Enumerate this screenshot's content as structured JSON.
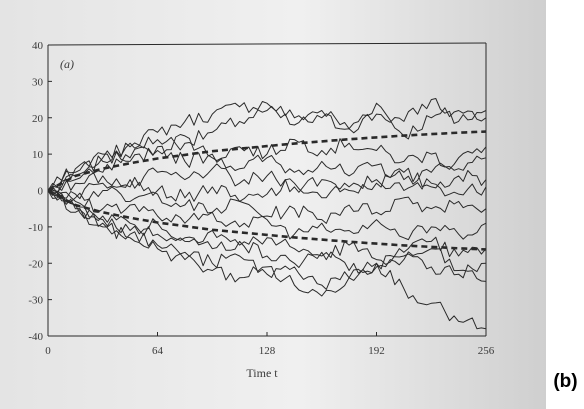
{
  "figure_label": "(b)",
  "colors": {
    "paper": "#ececec",
    "ink": "#2a2a2a"
  },
  "chart_data": {
    "type": "line",
    "panel_label": "(a)",
    "title": "",
    "xlabel": "Time t",
    "ylabel": "",
    "xlim": [
      0,
      256
    ],
    "ylim": [
      -40,
      40
    ],
    "xticks": [
      0,
      64,
      128,
      192,
      256
    ],
    "yticks": [
      -40,
      -30,
      -20,
      -10,
      0,
      10,
      20,
      30,
      40
    ],
    "grid": false,
    "legend": "none",
    "series": [
      {
        "style": "solid",
        "x": [
          0,
          16,
          32,
          48,
          64,
          80,
          96,
          112,
          128,
          144,
          160,
          176,
          192,
          208,
          224,
          240,
          256
        ],
        "values": [
          0,
          5,
          8,
          13,
          16,
          19,
          21,
          23,
          24,
          20,
          22,
          17,
          24,
          15,
          20,
          22,
          20
        ]
      },
      {
        "style": "solid",
        "x": [
          0,
          16,
          32,
          48,
          64,
          80,
          96,
          112,
          128,
          144,
          160,
          176,
          192,
          208,
          224,
          240,
          256
        ],
        "values": [
          0,
          4,
          9,
          12,
          14,
          13,
          16,
          19,
          22,
          18,
          20,
          17,
          21,
          19,
          25,
          19,
          22
        ]
      },
      {
        "style": "solid",
        "x": [
          0,
          16,
          32,
          48,
          64,
          80,
          96,
          112,
          128,
          144,
          160,
          176,
          192,
          208,
          224,
          240,
          256
        ],
        "values": [
          0,
          6,
          10,
          8,
          11,
          15,
          9,
          12,
          10,
          14,
          11,
          13,
          11,
          8,
          10,
          6,
          9
        ]
      },
      {
        "style": "solid",
        "x": [
          0,
          16,
          32,
          48,
          64,
          80,
          96,
          112,
          128,
          144,
          160,
          176,
          192,
          208,
          224,
          240,
          256
        ],
        "values": [
          0,
          3,
          5,
          9,
          12,
          8,
          10,
          6,
          9,
          5,
          8,
          4,
          7,
          3,
          5,
          9,
          12
        ]
      },
      {
        "style": "solid",
        "x": [
          0,
          16,
          32,
          48,
          64,
          80,
          96,
          112,
          128,
          144,
          160,
          176,
          192,
          208,
          224,
          240,
          256
        ],
        "values": [
          0,
          2,
          4,
          1,
          5,
          3,
          6,
          2,
          4,
          1,
          3,
          0,
          2,
          5,
          1,
          4,
          3
        ]
      },
      {
        "style": "solid",
        "x": [
          0,
          16,
          32,
          48,
          64,
          80,
          96,
          112,
          128,
          144,
          160,
          176,
          192,
          208,
          224,
          240,
          256
        ],
        "values": [
          0,
          -1,
          2,
          3,
          0,
          -2,
          1,
          -3,
          -1,
          2,
          -2,
          1,
          3,
          0,
          2,
          -1,
          1
        ]
      },
      {
        "style": "solid",
        "x": [
          0,
          16,
          32,
          48,
          64,
          80,
          96,
          112,
          128,
          144,
          160,
          176,
          192,
          208,
          224,
          240,
          256
        ],
        "values": [
          0,
          -2,
          0,
          -3,
          -1,
          -4,
          -6,
          -3,
          -7,
          -5,
          -8,
          -4,
          -6,
          -2,
          -5,
          -3,
          -5
        ]
      },
      {
        "style": "solid",
        "x": [
          0,
          16,
          32,
          48,
          64,
          80,
          96,
          112,
          128,
          144,
          160,
          176,
          192,
          208,
          224,
          240,
          256
        ],
        "values": [
          0,
          -3,
          -5,
          -4,
          -7,
          -9,
          -6,
          -10,
          -8,
          -12,
          -9,
          -11,
          -8,
          -13,
          -10,
          -12,
          -9
        ]
      },
      {
        "style": "solid",
        "x": [
          0,
          16,
          32,
          48,
          64,
          80,
          96,
          112,
          128,
          144,
          160,
          176,
          192,
          208,
          224,
          240,
          256
        ],
        "values": [
          0,
          -4,
          -7,
          -9,
          -12,
          -14,
          -11,
          -15,
          -13,
          -16,
          -18,
          -15,
          -19,
          -17,
          -14,
          -18,
          -16
        ]
      },
      {
        "style": "solid",
        "x": [
          0,
          16,
          32,
          48,
          64,
          80,
          96,
          112,
          128,
          144,
          160,
          176,
          192,
          208,
          224,
          240,
          256
        ],
        "values": [
          0,
          -5,
          -8,
          -11,
          -9,
          -13,
          -16,
          -14,
          -18,
          -20,
          -17,
          -22,
          -20,
          -18,
          -21,
          -23,
          -20
        ]
      },
      {
        "style": "solid",
        "x": [
          0,
          16,
          32,
          48,
          64,
          80,
          96,
          112,
          128,
          144,
          160,
          176,
          192,
          208,
          224,
          240,
          256
        ],
        "values": [
          0,
          -4,
          -9,
          -12,
          -15,
          -17,
          -20,
          -18,
          -23,
          -21,
          -26,
          -24,
          -21,
          -19,
          -16,
          -22,
          -25
        ]
      },
      {
        "style": "solid",
        "x": [
          0,
          16,
          32,
          48,
          64,
          80,
          96,
          112,
          128,
          144,
          160,
          176,
          192,
          208,
          224,
          240,
          256
        ],
        "values": [
          0,
          -6,
          -10,
          -13,
          -16,
          -19,
          -22,
          -24,
          -21,
          -26,
          -29,
          -24,
          -20,
          -27,
          -31,
          -36,
          -38
        ]
      },
      {
        "style": "dashed",
        "x": [
          0,
          16,
          32,
          48,
          64,
          80,
          96,
          112,
          128,
          144,
          160,
          176,
          192,
          208,
          224,
          240,
          256
        ],
        "values": [
          0,
          4,
          6,
          7.5,
          8.8,
          9.8,
          10.8,
          11.5,
          12.2,
          12.9,
          13.5,
          14.1,
          14.6,
          15.1,
          15.5,
          15.9,
          16.2
        ]
      },
      {
        "style": "dashed",
        "x": [
          0,
          16,
          32,
          48,
          64,
          80,
          96,
          112,
          128,
          144,
          160,
          176,
          192,
          208,
          224,
          240,
          256
        ],
        "values": [
          0,
          -4,
          -6,
          -7.5,
          -8.8,
          -9.8,
          -10.8,
          -11.5,
          -12.2,
          -12.9,
          -13.5,
          -14.1,
          -14.6,
          -15.1,
          -15.5,
          -15.9,
          -16.2
        ]
      }
    ]
  }
}
